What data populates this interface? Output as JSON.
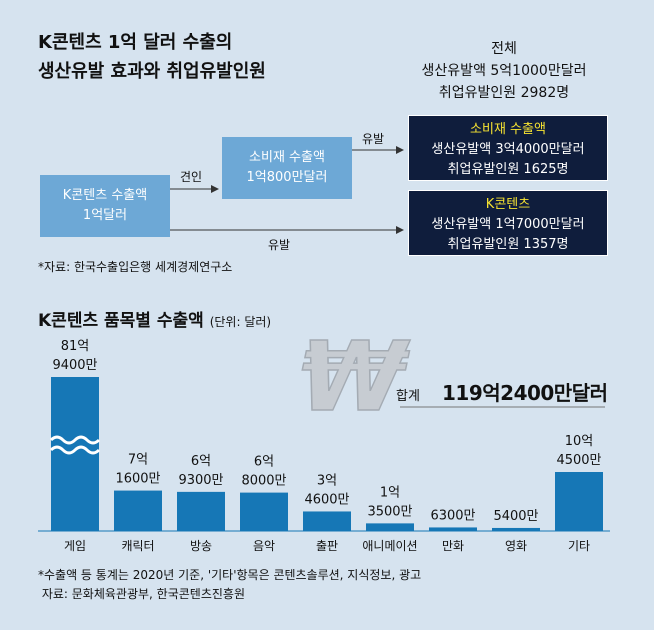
{
  "title": {
    "line1": "K콘텐츠 1억 달러 수출의",
    "line2": "생산유발 효과와 취업유발인원"
  },
  "total": {
    "heading": "전체",
    "production": "생산유발액 5억1000만달러",
    "employment": "취업유발인원 2982명"
  },
  "flow": {
    "kcontent_box": {
      "line1": "K콘텐츠 수출액",
      "line2": "1억달러"
    },
    "consumer_box": {
      "line1": "소비재 수출액",
      "line2": "1억800만달러"
    },
    "label_induce": "견인",
    "label_induce_top": "유발",
    "label_induce_bottom": "유발",
    "consumer_result": {
      "heading": "소비재 수출액",
      "production": "생산유발액 3억4000만달러",
      "employment": "취업유발인원 1625명"
    },
    "kcontent_result": {
      "heading": "K콘텐츠",
      "production": "생산유발액 1억7000만달러",
      "employment": "취업유발인원 1357명"
    }
  },
  "source1": "*자료: 한국수출입은행 세계경제연구소",
  "chart_title": "K콘텐츠 품목별 수출액",
  "chart_unit": "(단위: 달러)",
  "sum": {
    "label": "합계",
    "value": "119억2400만달러"
  },
  "notes": {
    "line1": "*수출액 등 통계는 2020년 기준, '기타'항목은 콘텐츠솔루션, 지식정보, 광고",
    "line2": " 자료: 문화체육관광부, 한국콘텐츠진흥원"
  },
  "colors": {
    "bar": "#1677b6",
    "bar_light": "#7db7e1",
    "navy": "#0f1d3c",
    "highlight": "#f6e332",
    "background": "#d6e3ef"
  },
  "chart_data": {
    "type": "bar",
    "categories": [
      "게임",
      "캐릭터",
      "방송",
      "음악",
      "출판",
      "애니메이션",
      "만화",
      "영화",
      "기타"
    ],
    "values": [
      819400,
      71600,
      69300,
      68000,
      34600,
      13500,
      6300,
      5400,
      104500
    ],
    "value_unit": "만달러",
    "value_labels": [
      [
        "81억",
        "9400만"
      ],
      [
        "7억",
        "1600만"
      ],
      [
        "6억",
        "9300만"
      ],
      [
        "6억",
        "8000만"
      ],
      [
        "3억",
        "4600만"
      ],
      [
        "1억",
        "3500만"
      ],
      [
        "6300만"
      ],
      [
        "5400만"
      ],
      [
        "10억",
        "4500만"
      ]
    ],
    "broken_axis": true,
    "broken_category": "게임"
  }
}
